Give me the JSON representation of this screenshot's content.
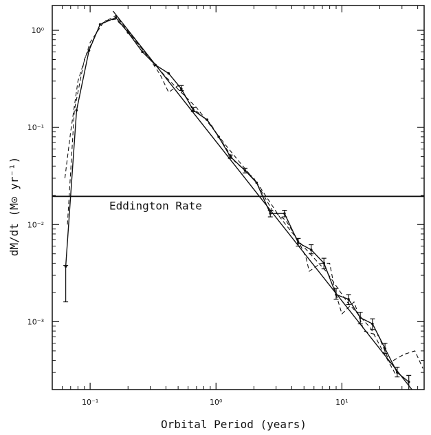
{
  "chart_data": {
    "type": "line",
    "xlabel": "Orbital Period (years)",
    "ylabel": "dM/dt (M⊙ yr⁻¹)",
    "xscale": "log",
    "yscale": "log",
    "xlim": [
      0.05,
      45
    ],
    "ylim": [
      0.0002,
      1.8
    ],
    "grid": false,
    "annotation": "Eddington Rate",
    "eddington_rate": 0.0195,
    "x_ticks": [
      {
        "value": 0.1,
        "label": "10⁻¹"
      },
      {
        "value": 1,
        "label": "10⁰"
      },
      {
        "value": 10,
        "label": "10¹"
      }
    ],
    "y_ticks": [
      {
        "value": 0.001,
        "label": "10⁻³"
      },
      {
        "value": 0.01,
        "label": "10⁻²"
      },
      {
        "value": 0.1,
        "label": "10⁻¹"
      },
      {
        "value": 1,
        "label": "10⁰"
      }
    ],
    "series": [
      {
        "style": "solid-with-errorbars",
        "points": [
          {
            "x": 0.064,
            "y": 0.0037,
            "lo": 0.0016,
            "hi": 0.0038
          },
          {
            "x": 0.078,
            "y": 0.15
          },
          {
            "x": 0.098,
            "y": 0.62
          },
          {
            "x": 0.12,
            "y": 1.15
          },
          {
            "x": 0.16,
            "y": 1.35
          },
          {
            "x": 0.2,
            "y": 0.95
          },
          {
            "x": 0.26,
            "y": 0.6
          },
          {
            "x": 0.33,
            "y": 0.44
          },
          {
            "x": 0.42,
            "y": 0.36
          },
          {
            "x": 0.53,
            "y": 0.25,
            "lo": 0.24,
            "hi": 0.27
          },
          {
            "x": 0.66,
            "y": 0.15,
            "lo": 0.145,
            "hi": 0.16
          },
          {
            "x": 0.85,
            "y": 0.12
          },
          {
            "x": 1.05,
            "y": 0.08
          },
          {
            "x": 1.3,
            "y": 0.05,
            "lo": 0.048,
            "hi": 0.052
          },
          {
            "x": 1.7,
            "y": 0.036,
            "lo": 0.034,
            "hi": 0.038
          },
          {
            "x": 2.1,
            "y": 0.027
          },
          {
            "x": 2.7,
            "y": 0.013,
            "lo": 0.012,
            "hi": 0.014
          },
          {
            "x": 3.5,
            "y": 0.013,
            "lo": 0.012,
            "hi": 0.014
          },
          {
            "x": 4.5,
            "y": 0.0065,
            "lo": 0.006,
            "hi": 0.0072
          },
          {
            "x": 5.7,
            "y": 0.0055,
            "lo": 0.005,
            "hi": 0.0062
          },
          {
            "x": 7.2,
            "y": 0.004,
            "lo": 0.0035,
            "hi": 0.0045
          },
          {
            "x": 9.0,
            "y": 0.0019,
            "lo": 0.0017,
            "hi": 0.0022
          },
          {
            "x": 11.3,
            "y": 0.0017,
            "lo": 0.0015,
            "hi": 0.0019
          },
          {
            "x": 14.0,
            "y": 0.0011,
            "lo": 0.00095,
            "hi": 0.00125
          },
          {
            "x": 17.5,
            "y": 0.00095,
            "lo": 0.00083,
            "hi": 0.00107
          },
          {
            "x": 22.0,
            "y": 0.00053,
            "lo": 0.00047,
            "hi": 0.0006
          },
          {
            "x": 27.5,
            "y": 0.0003,
            "lo": 0.00027,
            "hi": 0.00034
          },
          {
            "x": 34.0,
            "y": 0.00024,
            "lo": 0.0002,
            "hi": 0.00028
          }
        ]
      },
      {
        "style": "solid-fit",
        "points": [
          {
            "x": 0.152,
            "y": 1.58
          },
          {
            "x": 36.0,
            "y": 0.0002
          }
        ]
      },
      {
        "style": "dashed",
        "points": [
          {
            "x": 0.063,
            "y": 0.03
          },
          {
            "x": 0.07,
            "y": 0.09
          },
          {
            "x": 0.08,
            "y": 0.3
          },
          {
            "x": 0.1,
            "y": 0.75
          },
          {
            "x": 0.13,
            "y": 1.25
          },
          {
            "x": 0.16,
            "y": 1.3
          },
          {
            "x": 0.22,
            "y": 0.85
          },
          {
            "x": 0.3,
            "y": 0.5
          },
          {
            "x": 0.36,
            "y": 0.35
          },
          {
            "x": 0.42,
            "y": 0.23
          },
          {
            "x": 0.5,
            "y": 0.27
          },
          {
            "x": 0.65,
            "y": 0.16
          },
          {
            "x": 0.9,
            "y": 0.11
          },
          {
            "x": 1.4,
            "y": 0.045
          },
          {
            "x": 2.0,
            "y": 0.03
          },
          {
            "x": 2.8,
            "y": 0.014
          },
          {
            "x": 3.6,
            "y": 0.011
          },
          {
            "x": 4.6,
            "y": 0.0065
          },
          {
            "x": 5.2,
            "y": 0.0045
          },
          {
            "x": 5.5,
            "y": 0.0033
          },
          {
            "x": 6.8,
            "y": 0.004
          },
          {
            "x": 8.0,
            "y": 0.004
          },
          {
            "x": 8.8,
            "y": 0.0021
          },
          {
            "x": 10.0,
            "y": 0.0012
          },
          {
            "x": 12.5,
            "y": 0.0016
          },
          {
            "x": 15.0,
            "y": 0.0008
          },
          {
            "x": 19.5,
            "y": 0.00072
          },
          {
            "x": 24.0,
            "y": 0.00038
          },
          {
            "x": 31.0,
            "y": 0.00046
          },
          {
            "x": 38.0,
            "y": 0.0005
          },
          {
            "x": 44.0,
            "y": 0.00033
          }
        ]
      },
      {
        "style": "dashed",
        "points": [
          {
            "x": 0.066,
            "y": 0.01
          },
          {
            "x": 0.075,
            "y": 0.15
          },
          {
            "x": 0.09,
            "y": 0.5
          },
          {
            "x": 0.12,
            "y": 1.15
          },
          {
            "x": 0.16,
            "y": 1.42
          },
          {
            "x": 0.24,
            "y": 0.72
          },
          {
            "x": 0.4,
            "y": 0.33
          },
          {
            "x": 0.7,
            "y": 0.16
          },
          {
            "x": 1.2,
            "y": 0.065
          },
          {
            "x": 2.2,
            "y": 0.025
          },
          {
            "x": 3.2,
            "y": 0.012
          },
          {
            "x": 4.8,
            "y": 0.0062
          },
          {
            "x": 7.5,
            "y": 0.0033
          },
          {
            "x": 11.0,
            "y": 0.0016
          },
          {
            "x": 17.0,
            "y": 0.00085
          },
          {
            "x": 22.0,
            "y": 0.00045
          },
          {
            "x": 27.0,
            "y": 0.00028
          }
        ]
      }
    ]
  }
}
